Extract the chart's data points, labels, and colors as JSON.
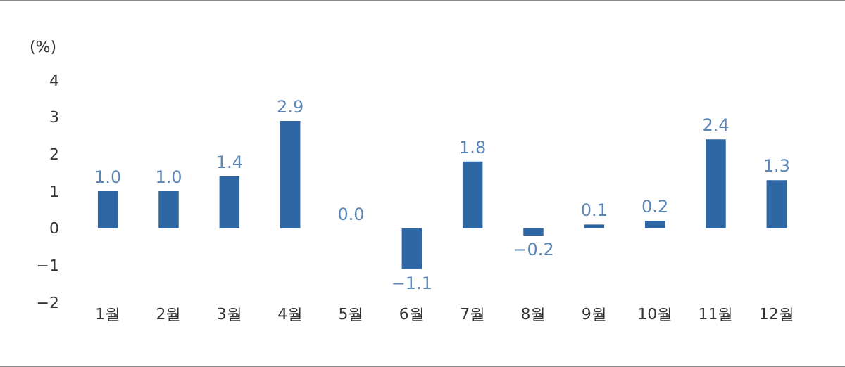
{
  "chart_data": {
    "type": "bar",
    "ylabel": "(%)",
    "categories": [
      "1월",
      "2월",
      "3월",
      "4월",
      "5월",
      "6월",
      "7월",
      "8월",
      "9월",
      "10월",
      "11월",
      "12월"
    ],
    "values": [
      1.0,
      1.0,
      1.4,
      2.9,
      0.0,
      -1.1,
      1.8,
      -0.2,
      0.1,
      0.2,
      2.4,
      1.3
    ],
    "value_labels": [
      "1.0",
      "1.0",
      "1.4",
      "2.9",
      "0.0",
      "−1.1",
      "1.8",
      "−0.2",
      "0.1",
      "0.2",
      "2.4",
      "1.3"
    ],
    "color": "#2e67a3",
    "ylim": [
      -2,
      4
    ],
    "yticks": [
      {
        "value": -2,
        "label": "−2"
      },
      {
        "value": -1,
        "label": "−1"
      },
      0,
      1,
      2,
      3,
      4
    ],
    "grid": false,
    "legend": false
  }
}
